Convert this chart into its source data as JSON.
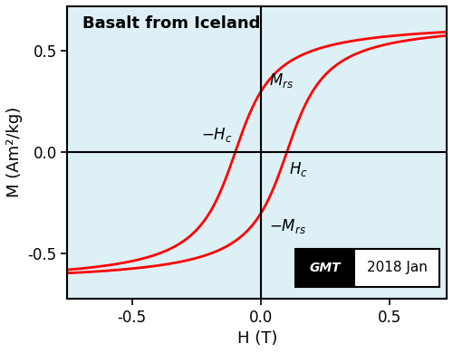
{
  "title": "Basalt from Iceland",
  "xlabel": "H (T)",
  "ylabel": "M (Am²/kg)",
  "xlim": [
    -0.75,
    0.72
  ],
  "ylim": [
    -0.72,
    0.72
  ],
  "xticks": [
    -0.5,
    0.0,
    0.5
  ],
  "yticks": [
    -0.5,
    0.0,
    0.5
  ],
  "background_color": "#ddf0f5",
  "curve_color": "#ff0000",
  "curve_linewidth": 2.0,
  "Hc": 0.1,
  "Mrs": 0.3,
  "Ms": 0.65,
  "k_shape": 4.5,
  "annotation_fontsize": 12,
  "label_fontsize": 13,
  "title_fontsize": 13,
  "tick_fontsize": 12,
  "stamp_text": "2018 Jan",
  "stamp_fontsize": 11
}
